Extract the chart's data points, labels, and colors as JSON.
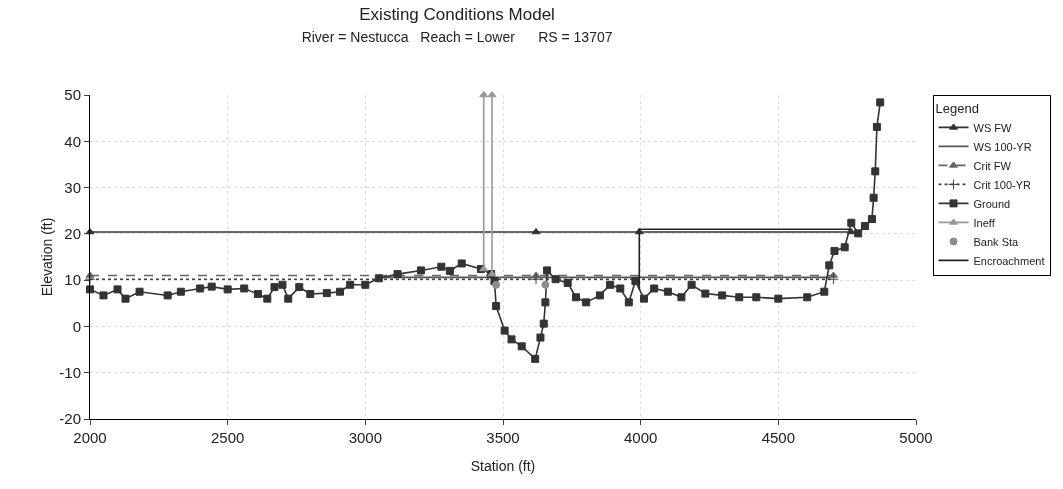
{
  "chart_data": {
    "type": "line",
    "title": "Existing Conditions Model",
    "subtitle": "River = Nestucca   Reach = Lower      RS = 13707",
    "xlabel": "Station (ft)",
    "ylabel": "Elevation (ft)",
    "legend_title": "Legend",
    "xlim": [
      2000,
      5000
    ],
    "xticks": [
      2000,
      2500,
      3000,
      3500,
      4000,
      4500,
      5000
    ],
    "ylim": [
      -20,
      50
    ],
    "yticks": [
      -20,
      -10,
      0,
      10,
      20,
      30,
      40,
      50
    ],
    "grid": true,
    "legend": "right",
    "series": [
      {
        "name": "WS FW",
        "color": "#333333",
        "type": "line",
        "marker": "triangle",
        "line_style": "solid",
        "x": [
          2000,
          3620,
          3995,
          4765
        ],
        "values": [
          20.4,
          20.4,
          20.4,
          20.4
        ]
      },
      {
        "name": "WS 100-YR",
        "color": "#555555",
        "type": "line",
        "marker": "none",
        "line_style": "solid",
        "x": [
          3050,
          4690
        ],
        "values": [
          10.6,
          10.6
        ]
      },
      {
        "name": "Crit FW",
        "color": "#666666",
        "type": "line",
        "marker": "triangle",
        "line_style": "dashed",
        "x": [
          2000,
          3620,
          4700
        ],
        "values": [
          11,
          11,
          11
        ]
      },
      {
        "name": "Crit 100-YR",
        "color": "#444444",
        "type": "line",
        "marker": "cross",
        "line_style": "dotted",
        "x": [
          2000,
          3620,
          4700
        ],
        "values": [
          10.2,
          10.2,
          10.2
        ]
      },
      {
        "name": "Ground",
        "color": "#333333",
        "type": "line",
        "marker": "square",
        "line_style": "solid",
        "x": [
          2000,
          2049,
          2100,
          2129,
          2180,
          2282,
          2330,
          2400,
          2442,
          2500,
          2560,
          2610,
          2644,
          2670,
          2699,
          2720,
          2760,
          2800,
          2860,
          2908,
          2945,
          3000,
          3049,
          3117,
          3202,
          3276,
          3307,
          3350,
          3420,
          3457,
          3469,
          3475,
          3506,
          3531,
          3568,
          3617,
          3636,
          3648,
          3654,
          3660,
          3691,
          3735,
          3765,
          3802,
          3852,
          3889,
          3926,
          3957,
          3981,
          4012,
          4049,
          4099,
          4148,
          4185,
          4235,
          4296,
          4358,
          4420,
          4500,
          4605,
          4667,
          4685,
          4704,
          4741,
          4765,
          4790,
          4815,
          4840,
          4846,
          4852,
          4858,
          4870
        ],
        "values": [
          8,
          6.7,
          8,
          6,
          7.5,
          6.7,
          7.5,
          8.2,
          8.6,
          8,
          8.2,
          7,
          6,
          8.5,
          9,
          6,
          8.5,
          7,
          7.2,
          7.5,
          9,
          9,
          10.4,
          11.3,
          12.1,
          12.9,
          12,
          13.6,
          12.4,
          11.3,
          9.8,
          4.4,
          -0.9,
          -2.8,
          -4.3,
          -7,
          -2.4,
          0.6,
          5.2,
          12.1,
          10.2,
          9.4,
          6.3,
          5.2,
          6.7,
          9,
          8.2,
          5.2,
          9.8,
          6,
          8.2,
          7.5,
          6.3,
          9,
          7.1,
          6.7,
          6.3,
          6.3,
          6,
          6.3,
          7.5,
          13.2,
          16.3,
          17.1,
          22.4,
          20.1,
          21.7,
          23.2,
          27.8,
          33.5,
          43.1,
          48.4
        ]
      },
      {
        "name": "Ineff",
        "color": "#999999",
        "type": "line",
        "marker": "triangle",
        "line_style": "solid",
        "x": [
          3430,
          3430,
          3445,
          3460,
          3460
        ],
        "values": [
          12.4,
          50,
          null,
          11.3,
          50
        ]
      },
      {
        "name": "Bank Sta",
        "color": "#8c8c8c",
        "type": "scatter",
        "marker": "circle",
        "x": [
          3475,
          3654
        ],
        "values": [
          9,
          9
        ]
      },
      {
        "name": "Encroachment",
        "color": "#222222",
        "type": "line",
        "marker": "none",
        "line_style": "solid",
        "x": [
          3995,
          3995,
          4760
        ],
        "values": [
          8,
          21,
          21
        ]
      }
    ]
  }
}
